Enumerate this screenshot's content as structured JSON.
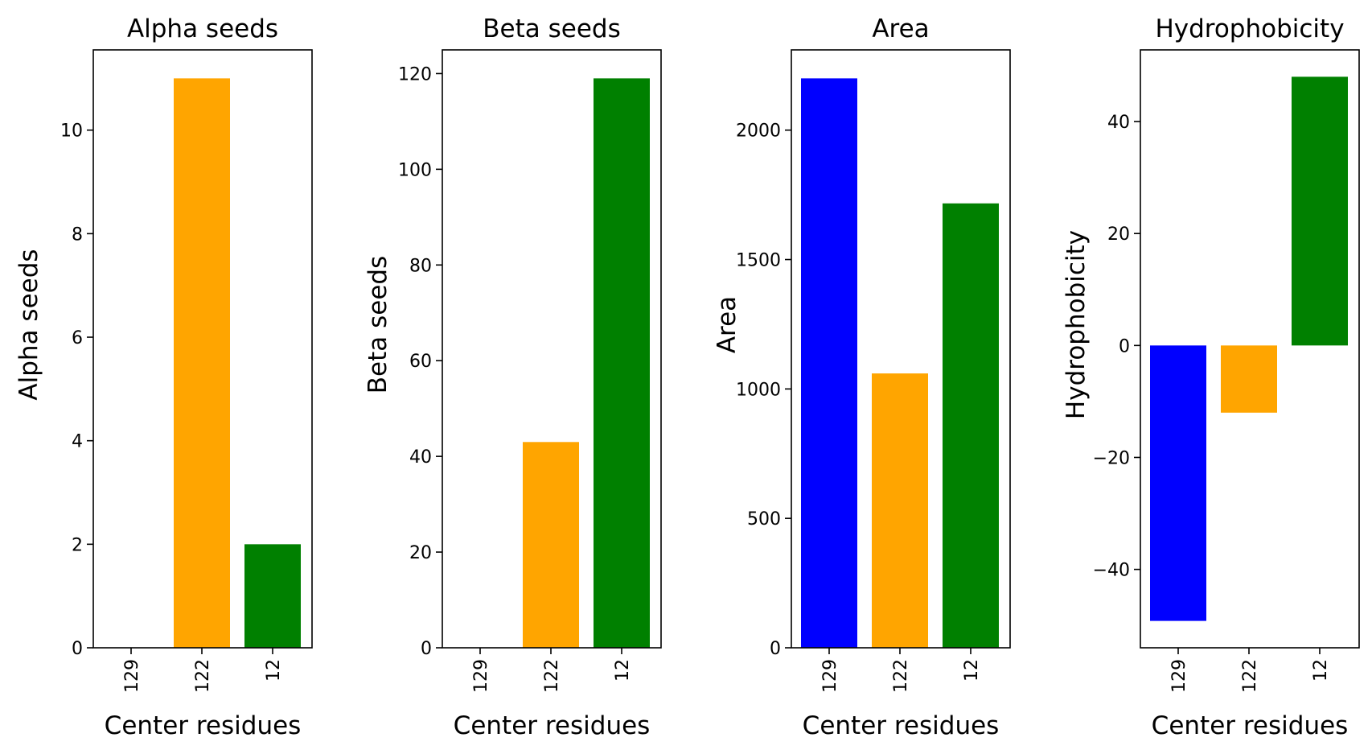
{
  "chart_data": [
    {
      "type": "bar",
      "title": "Alpha seeds",
      "xlabel": "Center residues",
      "ylabel": "Alpha seeds",
      "categories": [
        "129",
        "122",
        "12"
      ],
      "values": [
        0,
        11,
        2
      ],
      "colors": [
        "#0000ff",
        "#ffa500",
        "#008000"
      ],
      "ylim": [
        0,
        11.55
      ],
      "yticks": [
        0,
        2,
        4,
        6,
        8,
        10
      ],
      "grid": false
    },
    {
      "type": "bar",
      "title": "Beta seeds",
      "xlabel": "Center residues",
      "ylabel": "Beta seeds",
      "categories": [
        "129",
        "122",
        "12"
      ],
      "values": [
        0,
        43,
        119
      ],
      "colors": [
        "#0000ff",
        "#ffa500",
        "#008000"
      ],
      "ylim": [
        0,
        124.95
      ],
      "yticks": [
        0,
        20,
        40,
        60,
        80,
        100,
        120
      ],
      "grid": false
    },
    {
      "type": "bar",
      "title": "Area",
      "xlabel": "Center residues",
      "ylabel": "Area",
      "categories": [
        "129",
        "122",
        "12"
      ],
      "values": [
        2200,
        1060,
        1717
      ],
      "colors": [
        "#0000ff",
        "#ffa500",
        "#008000"
      ],
      "ylim": [
        0,
        2310
      ],
      "yticks": [
        0,
        500,
        1000,
        1500,
        2000
      ],
      "grid": false
    },
    {
      "type": "bar",
      "title": "Hydrophobicity",
      "xlabel": "Center residues",
      "ylabel": "Hydrophobicity",
      "categories": [
        "129",
        "122",
        "12"
      ],
      "values": [
        -49.2,
        -12,
        48
      ],
      "colors": [
        "#0000ff",
        "#ffa500",
        "#008000"
      ],
      "ylim": [
        -54.0,
        52.8
      ],
      "yticks": [
        -40,
        -20,
        0,
        20,
        40
      ],
      "ytick_labels": [
        "−40",
        "−20",
        "0",
        "20",
        "40"
      ],
      "grid": false
    }
  ]
}
